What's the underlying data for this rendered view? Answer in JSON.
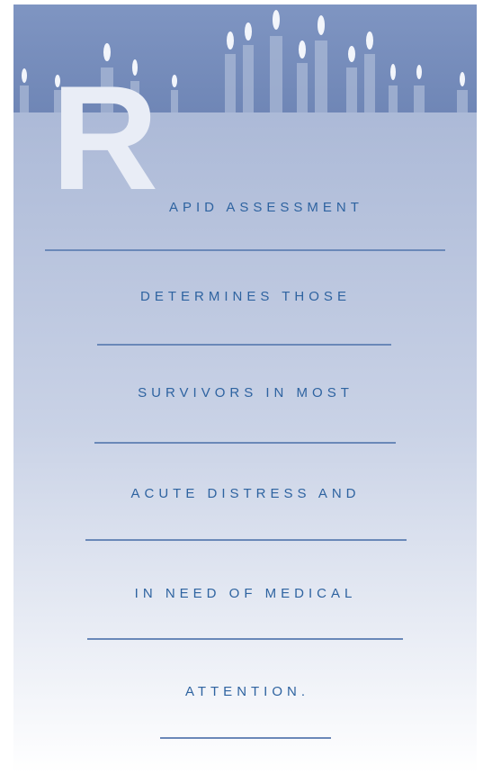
{
  "pull_quote": {
    "drop_cap": "R",
    "lines": [
      "APID ASSESSMENT",
      "DETERMINES THOSE",
      "SURVIVORS IN MOST",
      "ACUTE DISTRESS AND",
      "IN NEED OF MEDICAL",
      "ATTENTION."
    ]
  }
}
